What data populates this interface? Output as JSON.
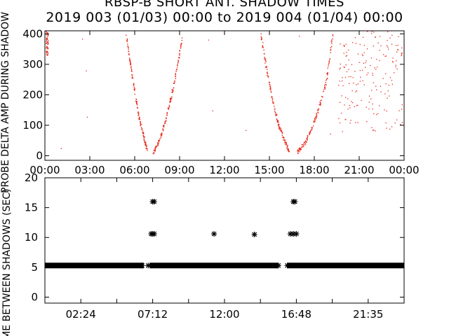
{
  "title_line1": "RBSP-B SHORT ANT. SHADOW TIMES",
  "title_line2": "2019 003 (01/03) 00:00 to 2019 004 (01/04) 00:00",
  "colors": {
    "scatter": "#e8281a",
    "marker": "#000000",
    "axes": "#000000"
  },
  "chart_data": [
    {
      "type": "scatter",
      "title": "",
      "ylabel": "PROBE DELTA AMP DURING SHADOW",
      "xlabel": "",
      "x_ticks": [
        "00:00",
        "03:00",
        "06:00",
        "09:00",
        "12:00",
        "15:00",
        "18:00",
        "21:00",
        "00:00"
      ],
      "y_ticks": [
        "0",
        "100",
        "200",
        "300",
        "400"
      ],
      "xlim_hours": [
        0,
        24
      ],
      "ylim": [
        -15,
        410
      ],
      "description_series": [
        {
          "name": "",
          "x_hours": [
            5.4,
            5.7,
            6.0,
            6.3,
            6.6,
            6.8
          ],
          "y": [
            400,
            300,
            200,
            120,
            60,
            20
          ]
        },
        {
          "name": "",
          "x_hours": [
            7.2,
            7.6,
            8.0,
            8.4,
            8.8,
            9.2
          ],
          "y": [
            10,
            50,
            110,
            190,
            290,
            400
          ]
        },
        {
          "name": "",
          "x_hours": [
            14.4,
            14.8,
            15.2,
            15.6,
            16.0,
            16.3
          ],
          "y": [
            400,
            280,
            180,
            100,
            50,
            15
          ]
        },
        {
          "name": "",
          "x_hours": [
            16.8,
            17.3,
            17.8,
            18.3,
            18.8,
            19.2
          ],
          "y": [
            10,
            40,
            90,
            160,
            250,
            400
          ]
        }
      ]
    },
    {
      "type": "scatter",
      "title": "",
      "ylabel": "TIME BETWEEN SHADOWS (SEC)",
      "xlabel": "",
      "x_ticks": [
        "02:24",
        "07:12",
        "12:00",
        "16:48",
        "21:35"
      ],
      "y_ticks": [
        "0",
        "5",
        "10",
        "15",
        "20"
      ],
      "xlim_hours": [
        0,
        24
      ],
      "ylim": [
        -1,
        20
      ],
      "baseline_value": 5.3,
      "baseline_gaps_hours": [
        [
          6.6,
          7.0
        ],
        [
          15.6,
          16.2
        ]
      ],
      "points": [
        {
          "x_hours": 6.5,
          "y": 5.3
        },
        {
          "x_hours": 6.9,
          "y": 5.3
        },
        {
          "x_hours": 7.1,
          "y": 10.6
        },
        {
          "x_hours": 7.2,
          "y": 10.6
        },
        {
          "x_hours": 7.3,
          "y": 10.6
        },
        {
          "x_hours": 7.2,
          "y": 16.0
        },
        {
          "x_hours": 7.3,
          "y": 16.0
        },
        {
          "x_hours": 11.3,
          "y": 10.6
        },
        {
          "x_hours": 14.0,
          "y": 10.5
        },
        {
          "x_hours": 15.6,
          "y": 5.3
        },
        {
          "x_hours": 16.2,
          "y": 5.3
        },
        {
          "x_hours": 16.4,
          "y": 10.6
        },
        {
          "x_hours": 16.6,
          "y": 10.6
        },
        {
          "x_hours": 16.8,
          "y": 10.6
        },
        {
          "x_hours": 16.6,
          "y": 16.0
        },
        {
          "x_hours": 16.7,
          "y": 16.0
        }
      ]
    }
  ]
}
